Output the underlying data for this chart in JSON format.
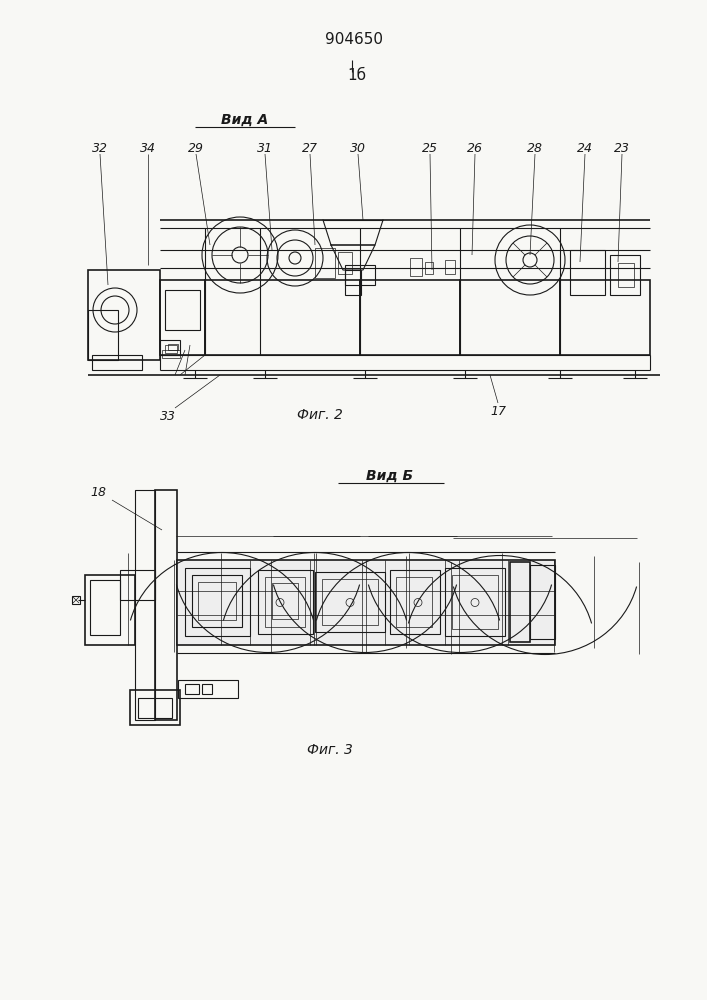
{
  "bg_color": "#f8f8f5",
  "line_color": "#1a1a1a",
  "patent_num": "904650",
  "fig1b": "1б",
  "view_a": "Вид А",
  "fig2_caption": "Фиг. 2",
  "view_b": "Вид Б",
  "fig3_caption": "Фиг. 3",
  "nums_top": [
    "32",
    "34",
    "29",
    "31",
    "27",
    "30",
    "25",
    "26",
    "28",
    "24",
    "23"
  ],
  "num33": "33",
  "num17": "17",
  "num18": "18"
}
